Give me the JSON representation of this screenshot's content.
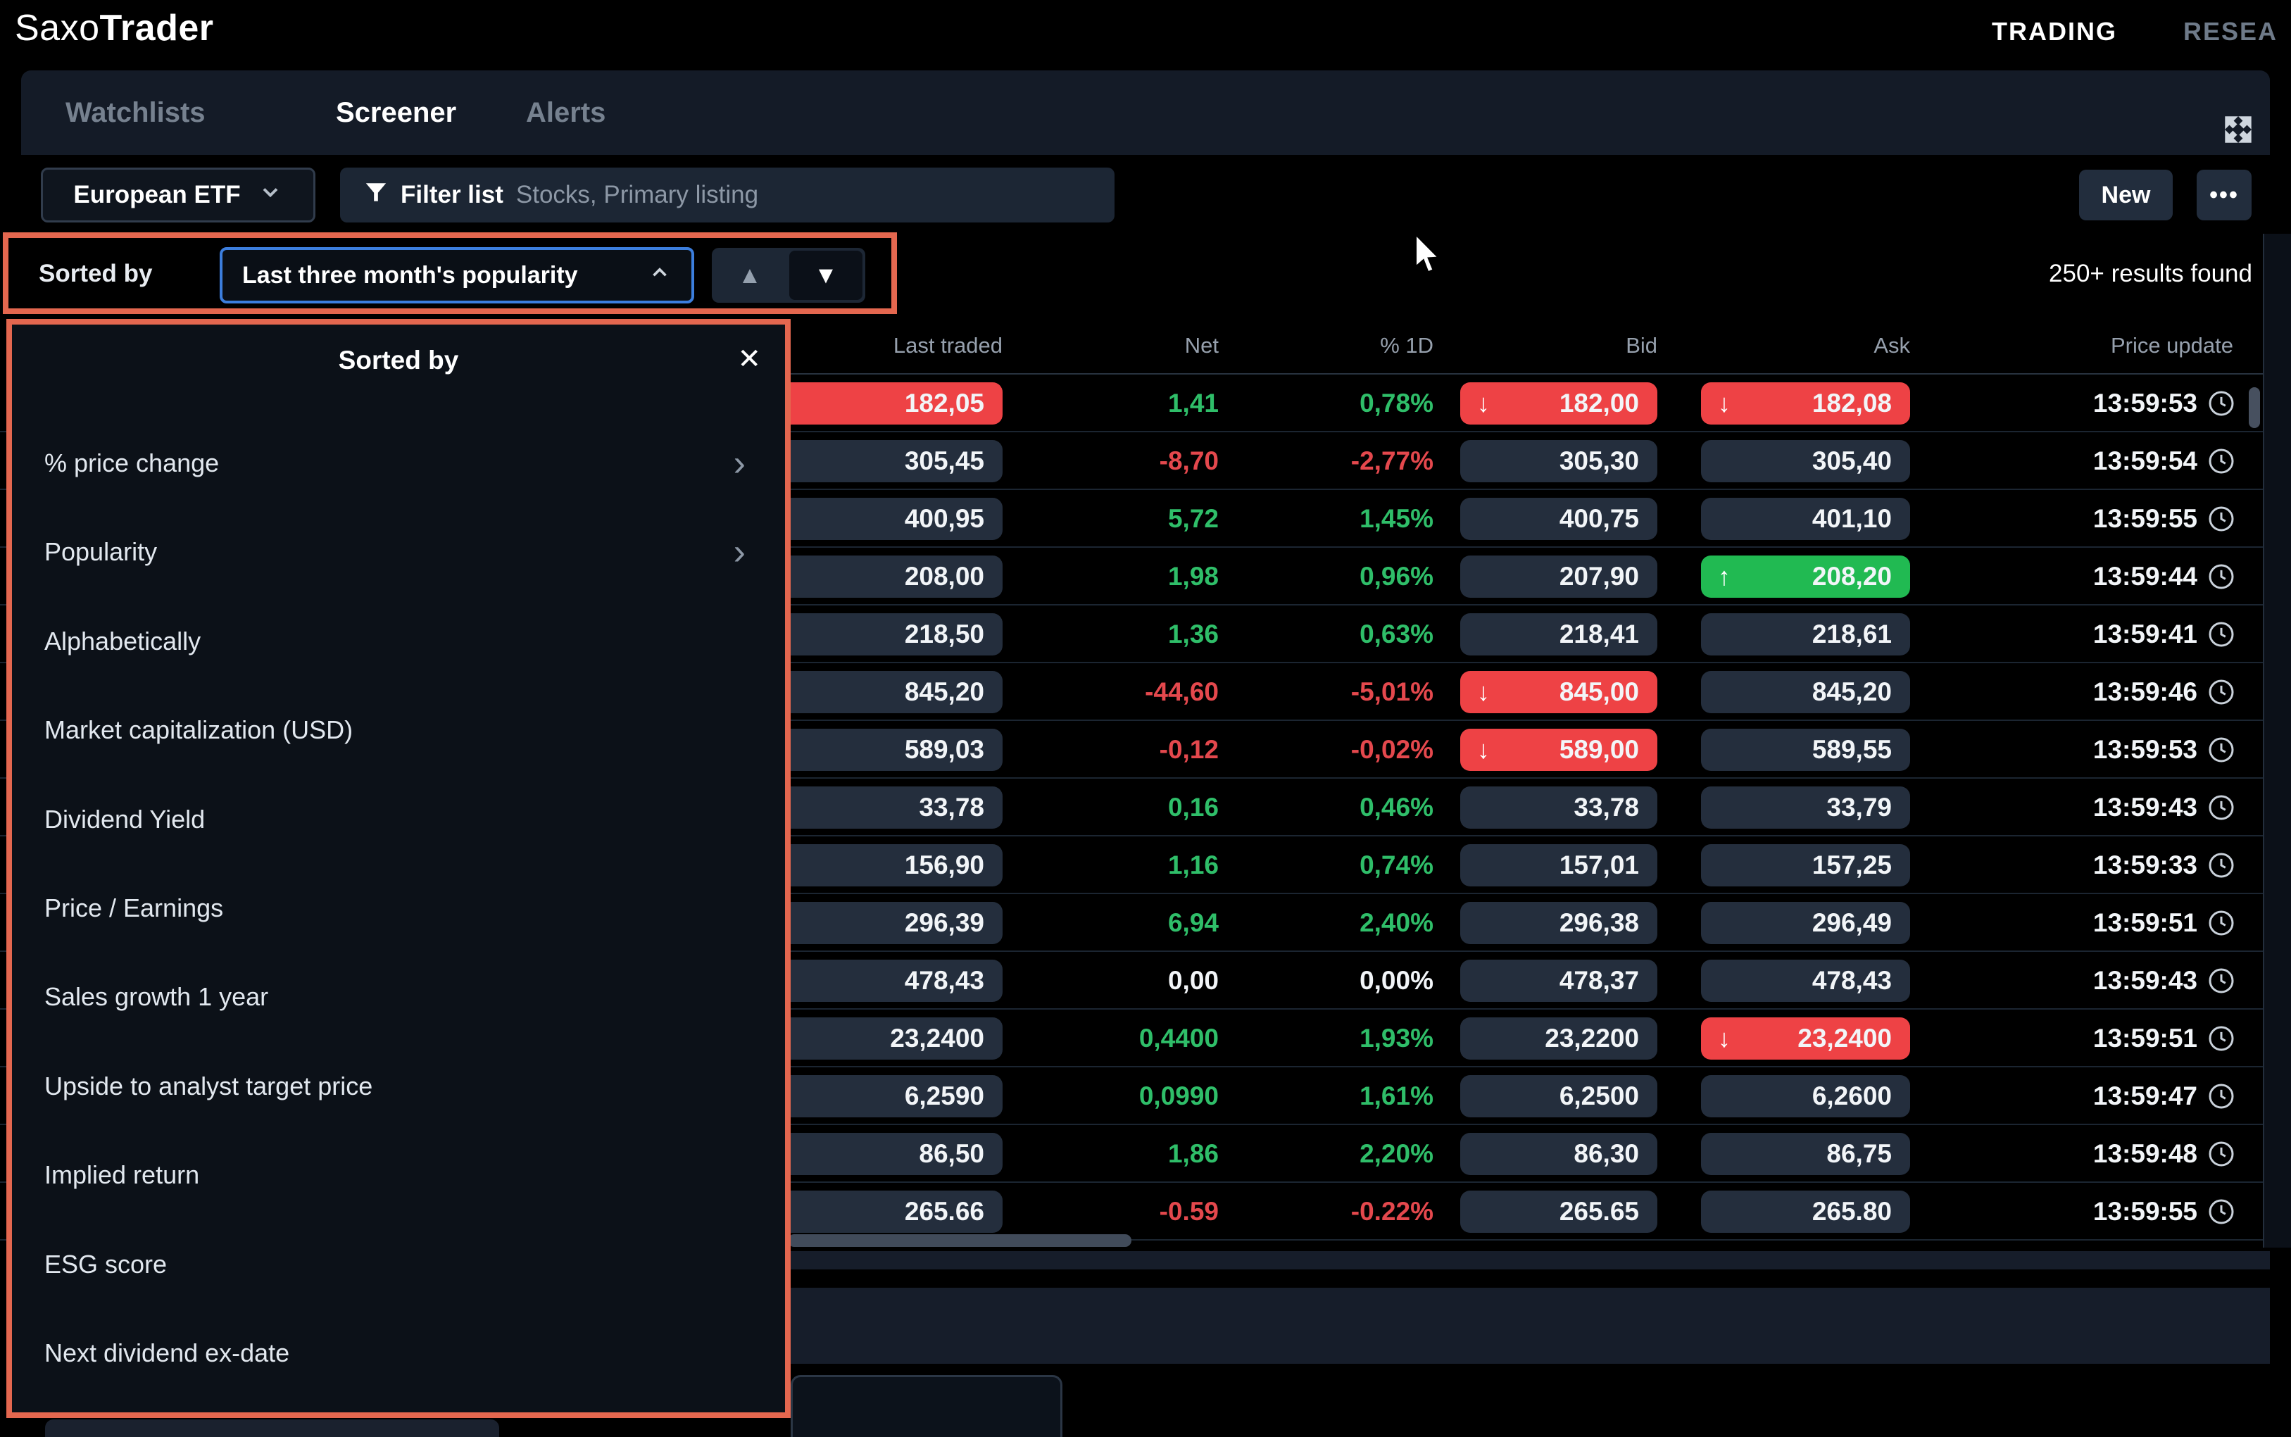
{
  "colors": {
    "flash_red": "#ee4245",
    "flash_green": "#21ba52",
    "text_green": "#2fbe69",
    "text_red": "#e4484d",
    "annotation": "#e4674f",
    "focus_blue": "#3c7edd"
  },
  "header": {
    "logo_saxo": "Saxo",
    "logo_trader": "Trader",
    "nav_trading": "TRADING",
    "nav_research": "RESEA"
  },
  "tabs": {
    "watchlists": "Watchlists",
    "screener": "Screener",
    "alerts": "Alerts"
  },
  "toolbar": {
    "list_selector": "European ETF",
    "filter_label": "Filter list",
    "filter_value": "Stocks, Primary listing",
    "new_label": "New",
    "more_label": "•••"
  },
  "sort_bar": {
    "label": "Sorted by",
    "value": "Last three month's popularity",
    "asc_glyph": "▲",
    "desc_glyph": "▼",
    "results": "250+ results found"
  },
  "sort_menu": {
    "title": "Sorted by",
    "close_glyph": "✕",
    "items": [
      {
        "label": "% price change",
        "has_submenu": true
      },
      {
        "label": "Popularity",
        "has_submenu": true
      },
      {
        "label": "Alphabetically",
        "has_submenu": false
      },
      {
        "label": "Market capitalization (USD)",
        "has_submenu": false
      },
      {
        "label": "Dividend Yield",
        "has_submenu": false
      },
      {
        "label": "Price / Earnings",
        "has_submenu": false
      },
      {
        "label": "Sales growth 1 year",
        "has_submenu": false
      },
      {
        "label": "Upside to analyst target price",
        "has_submenu": false
      },
      {
        "label": "Implied return",
        "has_submenu": false
      },
      {
        "label": "ESG score",
        "has_submenu": false
      },
      {
        "label": "Next dividend ex-date",
        "has_submenu": false
      }
    ]
  },
  "table": {
    "columns": [
      "Last traded",
      "Net",
      "% 1D",
      "Bid",
      "Ask",
      "Price update"
    ],
    "rows": [
      {
        "last": "182,05",
        "last_flash": "red",
        "net": "1,41",
        "net_dir": "up",
        "pct": "0,78%",
        "bid": "182,00",
        "bid_flash": "red",
        "ask": "182,08",
        "ask_flash": "red",
        "time": "13:59:53"
      },
      {
        "last": "305,45",
        "last_flash": null,
        "net": "-8,70",
        "net_dir": "down",
        "pct": "-2,77%",
        "bid": "305,30",
        "bid_flash": null,
        "ask": "305,40",
        "ask_flash": null,
        "time": "13:59:54"
      },
      {
        "last": "400,95",
        "last_flash": null,
        "net": "5,72",
        "net_dir": "up",
        "pct": "1,45%",
        "bid": "400,75",
        "bid_flash": null,
        "ask": "401,10",
        "ask_flash": null,
        "time": "13:59:55"
      },
      {
        "last": "208,00",
        "last_flash": null,
        "net": "1,98",
        "net_dir": "up",
        "pct": "0,96%",
        "bid": "207,90",
        "bid_flash": null,
        "ask": "208,20",
        "ask_flash": "green",
        "time": "13:59:44"
      },
      {
        "last": "218,50",
        "last_flash": null,
        "net": "1,36",
        "net_dir": "up",
        "pct": "0,63%",
        "bid": "218,41",
        "bid_flash": null,
        "ask": "218,61",
        "ask_flash": null,
        "time": "13:59:41"
      },
      {
        "last": "845,20",
        "last_flash": null,
        "net": "-44,60",
        "net_dir": "down",
        "pct": "-5,01%",
        "bid": "845,00",
        "bid_flash": "red",
        "ask": "845,20",
        "ask_flash": null,
        "time": "13:59:46"
      },
      {
        "last": "589,03",
        "last_flash": null,
        "net": "-0,12",
        "net_dir": "down",
        "pct": "-0,02%",
        "bid": "589,00",
        "bid_flash": "red",
        "ask": "589,55",
        "ask_flash": null,
        "time": "13:59:53"
      },
      {
        "last": "33,78",
        "last_flash": null,
        "net": "0,16",
        "net_dir": "up",
        "pct": "0,46%",
        "bid": "33,78",
        "bid_flash": null,
        "ask": "33,79",
        "ask_flash": null,
        "time": "13:59:43"
      },
      {
        "last": "156,90",
        "last_flash": null,
        "net": "1,16",
        "net_dir": "up",
        "pct": "0,74%",
        "bid": "157,01",
        "bid_flash": null,
        "ask": "157,25",
        "ask_flash": null,
        "time": "13:59:33"
      },
      {
        "last": "296,39",
        "last_flash": null,
        "net": "6,94",
        "net_dir": "up",
        "pct": "2,40%",
        "bid": "296,38",
        "bid_flash": null,
        "ask": "296,49",
        "ask_flash": null,
        "time": "13:59:51"
      },
      {
        "last": "478,43",
        "last_flash": null,
        "net": "0,00",
        "net_dir": "flat",
        "pct": "0,00%",
        "bid": "478,37",
        "bid_flash": null,
        "ask": "478,43",
        "ask_flash": null,
        "time": "13:59:43"
      },
      {
        "last": "23,2400",
        "last_flash": null,
        "net": "0,4400",
        "net_dir": "up",
        "pct": "1,93%",
        "bid": "23,2200",
        "bid_flash": null,
        "ask": "23,2400",
        "ask_flash": "red",
        "time": "13:59:51"
      },
      {
        "last": "6,2590",
        "last_flash": null,
        "net": "0,0990",
        "net_dir": "up",
        "pct": "1,61%",
        "bid": "6,2500",
        "bid_flash": null,
        "ask": "6,2600",
        "ask_flash": null,
        "time": "13:59:47"
      },
      {
        "last": "86,50",
        "last_flash": null,
        "net": "1,86",
        "net_dir": "up",
        "pct": "2,20%",
        "bid": "86,30",
        "bid_flash": null,
        "ask": "86,75",
        "ask_flash": null,
        "time": "13:59:48"
      },
      {
        "last": "265.66",
        "last_flash": null,
        "net": "-0.59",
        "net_dir": "down",
        "pct": "-0.22%",
        "bid": "265.65",
        "bid_flash": null,
        "ask": "265.80",
        "ask_flash": null,
        "time": "13:59:55"
      }
    ]
  }
}
